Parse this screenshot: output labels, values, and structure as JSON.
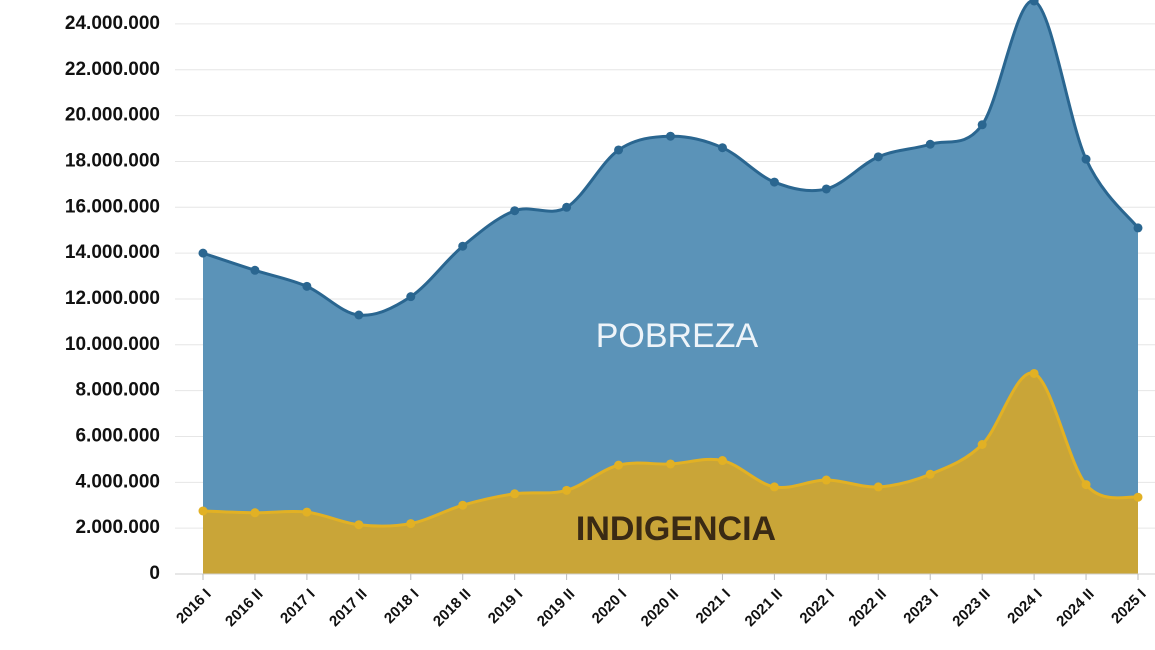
{
  "chart_data": {
    "type": "area",
    "categories": [
      "2016 I",
      "2016 II",
      "2017 I",
      "2017 II",
      "2018 I",
      "2018 II",
      "2019 I",
      "2019 II",
      "2020 I",
      "2020 II",
      "2021 I",
      "2021 II",
      "2022 I",
      "2022 II",
      "2023 I",
      "2023 II",
      "2024 I",
      "2024 II",
      "2025 I"
    ],
    "series": [
      {
        "name": "POBREZA",
        "color": "#5b93b8",
        "line_color": "#2a6690",
        "values": [
          14000000,
          13250000,
          12550000,
          11300000,
          12100000,
          14300000,
          15850000,
          16000000,
          18500000,
          19100000,
          18600000,
          17100000,
          16800000,
          18200000,
          18750000,
          19600000,
          25000000,
          18100000,
          15100000
        ]
      },
      {
        "name": "INDIGENCIA",
        "color": "#c9a538",
        "line_color": "#e2b124",
        "values": [
          2750000,
          2670000,
          2700000,
          2150000,
          2200000,
          3000000,
          3500000,
          3650000,
          4750000,
          4800000,
          4950000,
          3800000,
          4100000,
          3800000,
          4350000,
          5650000,
          8750000,
          3900000,
          3350000
        ]
      }
    ],
    "ylim": [
      0,
      25000000
    ],
    "yticks": [
      0,
      {
        "value": 2000000,
        "label": "2.000.000"
      },
      {
        "value": 4000000,
        "label": "4.000.000"
      },
      {
        "value": 6000000,
        "label": "6.000.000"
      },
      {
        "value": 8000000,
        "label": "8.000.000"
      },
      {
        "value": 10000000,
        "label": "10.000.000"
      },
      {
        "value": 12000000,
        "label": "12.000.000"
      },
      {
        "value": 14000000,
        "label": "14.000.000"
      },
      {
        "value": 16000000,
        "label": "16.000.000"
      },
      {
        "value": 18000000,
        "label": "18.000.000"
      },
      {
        "value": 20000000,
        "label": "20.000.000"
      },
      {
        "value": 22000000,
        "label": "22.000.000"
      },
      {
        "value": 24000000,
        "label": "24.000.000"
      }
    ],
    "grid": true
  }
}
